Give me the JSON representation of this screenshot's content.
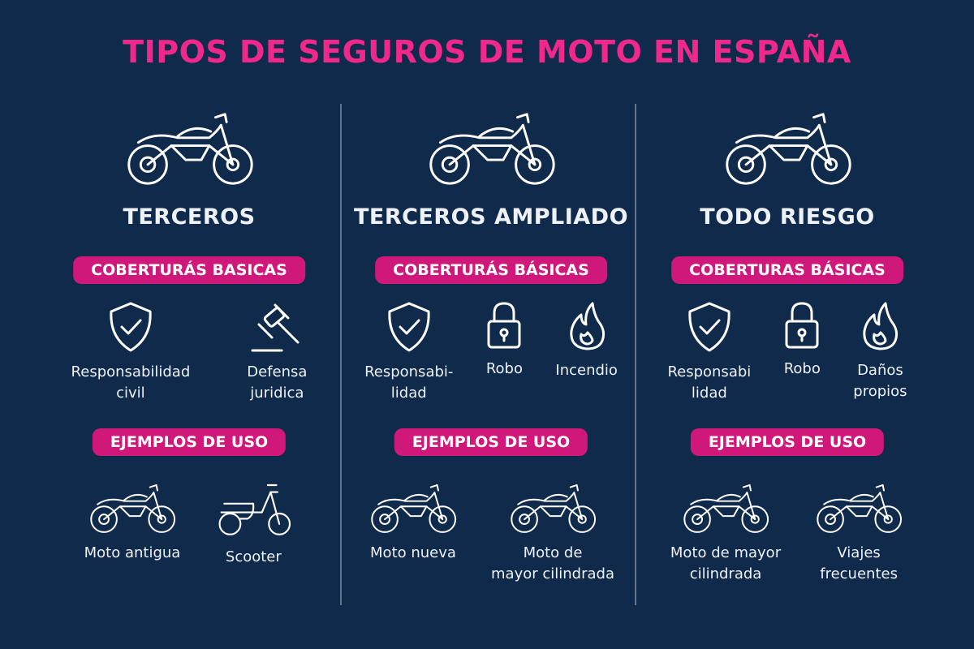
{
  "title": "TIPOS DE SEGUROS DE MOTO EN ESPAÑA",
  "colors": {
    "background": "#102a4c",
    "accent": "#f0288c",
    "badge": "#d0177a"
  },
  "columns": [
    {
      "title": "TERCEROS",
      "icon": "motorcycle-icon",
      "coverage_label": "COBERTURÁS BASICAS",
      "coverages": [
        {
          "icon": "shield-check-icon",
          "label": "Responsabilidad\ncivil"
        },
        {
          "icon": "gavel-icon",
          "label": "Defensa\njuridica"
        }
      ],
      "examples_label": "EJEMPLOS DE USO",
      "examples": [
        {
          "icon": "classic-motorcycle-icon",
          "label": "Moto antigua"
        },
        {
          "icon": "scooter-icon",
          "label": "Scooter"
        }
      ]
    },
    {
      "title": "TERCEROS AMPLIADO",
      "icon": "motorcycle-icon",
      "coverage_label": "COBERTURÁS BÁSICAS",
      "coverages": [
        {
          "icon": "shield-check-icon",
          "label": "Responsabi-\nlidad"
        },
        {
          "icon": "lock-icon",
          "label": "Robo"
        },
        {
          "icon": "fire-icon",
          "label": "Incendio"
        }
      ],
      "examples_label": "EJEMPLOS DE USO",
      "examples": [
        {
          "icon": "sport-motorcycle-icon",
          "label": "Moto nueva"
        },
        {
          "icon": "motorcycle-icon",
          "label": "Moto de\nmayor cilindrada"
        }
      ]
    },
    {
      "title": "TODO RIESGO",
      "icon": "motorcycle-icon",
      "coverage_label": "COBERTURAS BÁSICAS",
      "coverages": [
        {
          "icon": "shield-check-icon",
          "label": "Responsabi\nlidad"
        },
        {
          "icon": "lock-icon",
          "label": "Robo"
        },
        {
          "icon": "fire-icon",
          "label": "Daños\npropios"
        }
      ],
      "examples_label": "EJEMPLOS DE USO",
      "examples": [
        {
          "icon": "motorcycle-icon",
          "label": "Moto de mayor\ncilindrada"
        },
        {
          "icon": "motorcycle-icon",
          "label": "Viajes\nfrecuentes"
        }
      ]
    }
  ]
}
